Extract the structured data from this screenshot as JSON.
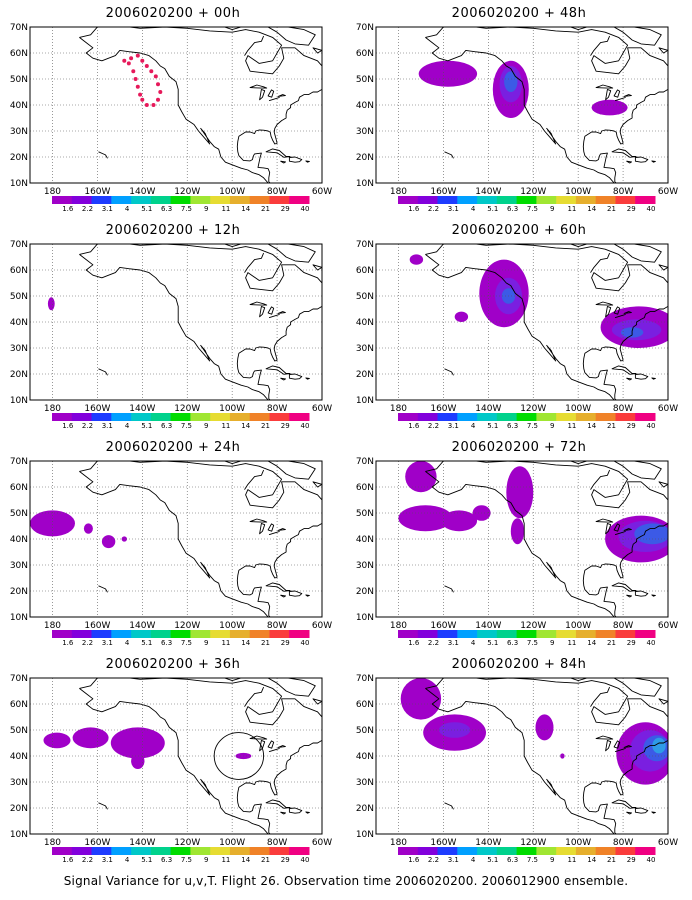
{
  "panels": [
    {
      "title": "2006020200 + 00h",
      "col": 0,
      "row": 0,
      "features": [
        {
          "kind": "dots",
          "lat": [
            57,
            58,
            59,
            57,
            55,
            53,
            51,
            48,
            45,
            42,
            40,
            40,
            42,
            44,
            47,
            50,
            53,
            56
          ],
          "lon": [
            -148,
            -145,
            -142,
            -140,
            -138,
            -136,
            -134,
            -133,
            -132,
            -133,
            -135,
            -138,
            -140,
            -141,
            -142,
            -143,
            -144,
            -146
          ]
        }
      ]
    },
    {
      "title": "2006020200 + 48h",
      "col": 1,
      "row": 0,
      "features": [
        {
          "kind": "blob",
          "lat": 52,
          "lon": -158,
          "rlat": 5,
          "rlon": 13,
          "level": 1
        },
        {
          "kind": "blob",
          "lat": 46,
          "lon": -130,
          "rlat": 11,
          "rlon": 8,
          "level": 1
        },
        {
          "kind": "blob",
          "lat": 48,
          "lon": -130,
          "rlat": 7,
          "rlon": 5,
          "level": 2
        },
        {
          "kind": "blob",
          "lat": 49,
          "lon": -130,
          "rlat": 4,
          "rlon": 3,
          "level": 3
        },
        {
          "kind": "blob",
          "lat": 39,
          "lon": -86,
          "rlat": 3,
          "rlon": 8,
          "level": 1
        }
      ]
    },
    {
      "title": "2006020200 + 12h",
      "col": 0,
      "row": 1,
      "features": [
        {
          "kind": "blob",
          "lat": 47,
          "lon": -180.5,
          "rlat": 2.5,
          "rlon": 1.5,
          "level": 1
        }
      ]
    },
    {
      "title": "2006020200 + 60h",
      "col": 1,
      "row": 1,
      "features": [
        {
          "kind": "blob",
          "lat": 64,
          "lon": -172,
          "rlat": 2,
          "rlon": 3,
          "level": 1
        },
        {
          "kind": "blob",
          "lat": 51,
          "lon": -133,
          "rlat": 13,
          "rlon": 11,
          "level": 1
        },
        {
          "kind": "blob",
          "lat": 50,
          "lon": -131,
          "rlat": 7,
          "rlon": 6,
          "level": 2
        },
        {
          "kind": "blob",
          "lat": 50,
          "lon": -131,
          "rlat": 3,
          "rlon": 3,
          "level": 3
        },
        {
          "kind": "blob",
          "lat": 42,
          "lon": -152,
          "rlat": 2,
          "rlon": 3,
          "level": 1
        },
        {
          "kind": "blob",
          "lat": 38,
          "lon": -73,
          "rlat": 8,
          "rlon": 17,
          "level": 1
        },
        {
          "kind": "blob",
          "lat": 37,
          "lon": -74,
          "rlat": 4,
          "rlon": 11,
          "level": 2
        },
        {
          "kind": "blob",
          "lat": 36,
          "lon": -76,
          "rlat": 2,
          "rlon": 5,
          "level": 3
        }
      ]
    },
    {
      "title": "2006020200 + 24h",
      "col": 0,
      "row": 2,
      "features": [
        {
          "kind": "blob",
          "lat": 46,
          "lon": -180,
          "rlat": 5,
          "rlon": 10,
          "level": 1
        },
        {
          "kind": "blob",
          "lat": 44,
          "lon": -164,
          "rlat": 2,
          "rlon": 2,
          "level": 1
        },
        {
          "kind": "blob",
          "lat": 39,
          "lon": -155,
          "rlat": 2.5,
          "rlon": 3,
          "level": 1
        },
        {
          "kind": "blob",
          "lat": 40,
          "lon": -148,
          "rlat": 1,
          "rlon": 1.2,
          "level": 1
        }
      ]
    },
    {
      "title": "2006020200 + 72h",
      "col": 1,
      "row": 2,
      "features": [
        {
          "kind": "blob",
          "lat": 64,
          "lon": -170,
          "rlat": 6,
          "rlon": 7,
          "level": 1
        },
        {
          "kind": "blob",
          "lat": 48,
          "lon": -168,
          "rlat": 5,
          "rlon": 12,
          "level": 1
        },
        {
          "kind": "blob",
          "lat": 47,
          "lon": -153,
          "rlat": 4,
          "rlon": 8,
          "level": 1
        },
        {
          "kind": "blob",
          "lat": 50,
          "lon": -143,
          "rlat": 3,
          "rlon": 4,
          "level": 1
        },
        {
          "kind": "blob",
          "lat": 58,
          "lon": -126,
          "rlat": 10,
          "rlon": 6,
          "level": 1
        },
        {
          "kind": "blob",
          "lat": 43,
          "lon": -127,
          "rlat": 5,
          "rlon": 3,
          "level": 1
        },
        {
          "kind": "blob",
          "lat": 40,
          "lon": -72,
          "rlat": 9,
          "rlon": 16,
          "level": 1
        },
        {
          "kind": "blob",
          "lat": 41,
          "lon": -70,
          "rlat": 6,
          "rlon": 12,
          "level": 2
        },
        {
          "kind": "blob",
          "lat": 42,
          "lon": -67,
          "rlat": 4,
          "rlon": 8,
          "level": 3
        }
      ]
    },
    {
      "title": "2006020200 + 36h",
      "col": 0,
      "row": 3,
      "features": [
        {
          "kind": "blob",
          "lat": 46,
          "lon": -178,
          "rlat": 3,
          "rlon": 6,
          "level": 1
        },
        {
          "kind": "blob",
          "lat": 47,
          "lon": -163,
          "rlat": 4,
          "rlon": 8,
          "level": 1
        },
        {
          "kind": "blob",
          "lat": 45,
          "lon": -142,
          "rlat": 6,
          "rlon": 12,
          "level": 1
        },
        {
          "kind": "blob",
          "lat": 38,
          "lon": -142,
          "rlat": 3,
          "rlon": 3,
          "level": 1
        },
        {
          "kind": "blob",
          "lat": 40,
          "lon": -95,
          "rlat": 1.2,
          "rlon": 3.5,
          "level": 1
        },
        {
          "kind": "circle",
          "lat": 40,
          "lon": -97,
          "rlat": 9,
          "rlon": 11
        }
      ]
    },
    {
      "title": "2006020200 + 84h",
      "col": 1,
      "row": 3,
      "features": [
        {
          "kind": "blob",
          "lat": 62,
          "lon": -170,
          "rlat": 8,
          "rlon": 9,
          "level": 1
        },
        {
          "kind": "blob",
          "lat": 49,
          "lon": -155,
          "rlat": 7,
          "rlon": 14,
          "level": 1
        },
        {
          "kind": "blob",
          "lat": 50,
          "lon": -155,
          "rlat": 3,
          "rlon": 7,
          "level": 2
        },
        {
          "kind": "blob",
          "lat": 51,
          "lon": -115,
          "rlat": 5,
          "rlon": 4,
          "level": 1
        },
        {
          "kind": "blob",
          "lat": 40,
          "lon": -107,
          "rlat": 1,
          "rlon": 1,
          "level": 1
        },
        {
          "kind": "blob",
          "lat": 41,
          "lon": -70,
          "rlat": 12,
          "rlon": 13,
          "level": 1
        },
        {
          "kind": "blob",
          "lat": 42,
          "lon": -68,
          "rlat": 8,
          "rlon": 9,
          "level": 2
        },
        {
          "kind": "blob",
          "lat": 43,
          "lon": -65,
          "rlat": 5,
          "rlon": 6,
          "level": 3
        },
        {
          "kind": "blob",
          "lat": 44,
          "lon": -64,
          "rlat": 3,
          "rlon": 3,
          "level": 4
        }
      ]
    }
  ],
  "map": {
    "lon_range": [
      -190,
      -60
    ],
    "lat_range": [
      10,
      70
    ],
    "lat_ticks": [
      "10N",
      "20N",
      "30N",
      "40N",
      "50N",
      "60N",
      "70N"
    ],
    "lon_ticks": [
      {
        "label": "180",
        "lon": -180
      },
      {
        "label": "160W",
        "lon": -160
      },
      {
        "label": "140W",
        "lon": -140
      },
      {
        "label": "120W",
        "lon": -120
      },
      {
        "label": "100W",
        "lon": -100
      },
      {
        "label": "80W",
        "lon": -80
      },
      {
        "label": "60W",
        "lon": -60
      }
    ]
  },
  "colorbar": {
    "labels": [
      "1.6",
      "2.2",
      "3.1",
      "4",
      "5.1",
      "6.3",
      "7.5",
      "9",
      "11",
      "14",
      "21",
      "29",
      "40"
    ],
    "colors": [
      "#a000c8",
      "#8200dc",
      "#1e3cff",
      "#00a0ff",
      "#00c8c8",
      "#00d28c",
      "#00dc00",
      "#a0e632",
      "#e6dc32",
      "#e6af2d",
      "#f08228",
      "#fa3c3c",
      "#f00082"
    ]
  },
  "shade_colors": [
    "#a000c8",
    "#7a1fe0",
    "#3c5ae6",
    "#2e9be6",
    "#00c8c8"
  ],
  "dot_color": "#e6195a",
  "footer": "Signal Variance for u,v,T. Flight 26. Observation time 2006020200. 2006012900 ensemble."
}
